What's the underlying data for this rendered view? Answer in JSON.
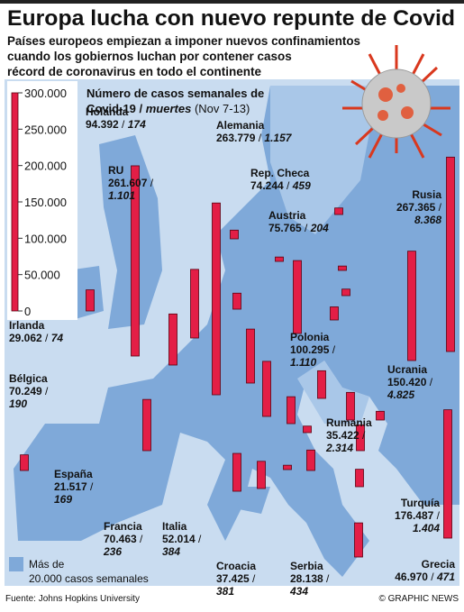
{
  "chart_data": {
    "type": "bar",
    "title": "Europa lucha con nuevo repunte de Covid",
    "subtitle": [
      "Países europeos empiezan a imponer nuevos confinamientos",
      "cuando los gobiernos luchan por contener casos",
      "récord de coronavirus en todo el continente"
    ],
    "axis_title": [
      "Número de casos semanales de",
      "Covid-19 /",
      "muertes",
      "(Nov 7-13)"
    ],
    "separator": "/",
    "ylim": [
      0,
      300000
    ],
    "yticks": [
      0,
      {
        "value": 50000,
        "label": "50.000"
      },
      {
        "value": 100000,
        "label": "100.000"
      },
      {
        "value": 150000,
        "label": "150.000"
      },
      {
        "value": 200000,
        "label": "200.000"
      },
      {
        "value": 250000,
        "label": "250.000"
      },
      {
        "value": 300000,
        "label": "300.000"
      }
    ],
    "color": "#e31e46",
    "categories": [
      "Holanda",
      "Alemania",
      "RU",
      "Rep. Checa",
      "Austria",
      "Rusia",
      "Irlanda",
      "Polonia",
      "Bélgica",
      "Ucrania",
      "Rumania",
      "España",
      "Turquía",
      "Francia",
      "Italia",
      "Croacia",
      "Serbia",
      "Grecia",
      null,
      null,
      null,
      null,
      null,
      null,
      null,
      null,
      null,
      null,
      null,
      null,
      null,
      null
    ],
    "values": [
      94392,
      263779,
      261607,
      74244,
      75765,
      267365,
      29062,
      100295,
      70249,
      150420,
      35422,
      21517,
      176487,
      70463,
      52014,
      37425,
      28138,
      46970,
      12000,
      9000,
      6000,
      6000,
      9000,
      18000,
      38000,
      37000,
      38000,
      12000,
      9000,
      6000,
      24000,
      22000
    ],
    "value_labels": [
      "94.392",
      "263.779",
      "261.607",
      "74.244",
      "75.765",
      "267.365",
      "29.062",
      "100.295",
      "70.249",
      "150.420",
      "35.422",
      "21.517",
      "176.487",
      "70.463",
      "52.014",
      "37.425",
      "28.138",
      "46.970",
      null,
      null,
      null,
      null,
      null,
      null,
      null,
      null,
      null,
      null,
      null,
      null,
      null,
      null
    ],
    "deaths_labels": [
      "174",
      "1.157",
      "1.101",
      "459",
      "204",
      "8.368",
      "74",
      "1.110",
      "190",
      "4.825",
      "2.314",
      "169",
      "1.404",
      "236",
      "384",
      "381",
      "434",
      "471",
      null,
      null,
      null,
      null,
      null,
      null,
      null,
      null,
      null,
      null,
      null,
      null,
      null,
      null
    ],
    "legend": [
      "Más de",
      "20.000 casos semanales"
    ],
    "source": "Fuente: Johns Hopkins University",
    "credit": "© GRAPHIC NEWS"
  }
}
